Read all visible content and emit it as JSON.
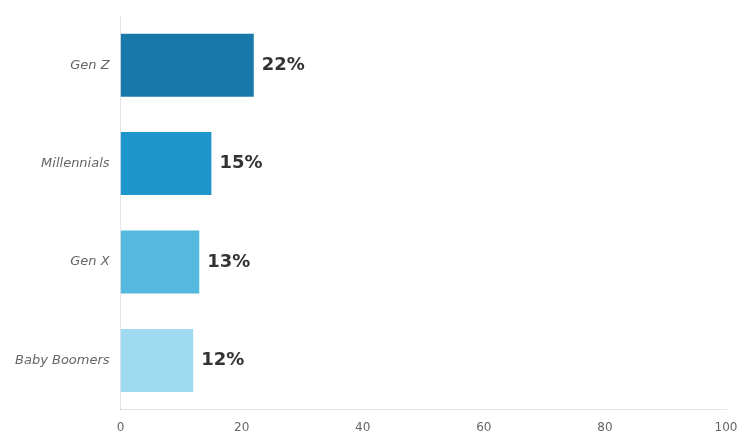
{
  "chart_data": {
    "type": "bar",
    "orientation": "horizontal",
    "categories": [
      "Gen Z",
      "Millennials",
      "Gen X",
      "Baby Boomers"
    ],
    "values": [
      22,
      15,
      13,
      12
    ],
    "value_labels": [
      "22%",
      "15%",
      "13%",
      "12%"
    ],
    "data_labels": true,
    "colors": [
      "#1878aa",
      "#1e96cc",
      "#55b8de",
      "#a0daf0"
    ],
    "xlim": [
      0,
      100
    ],
    "xticks": [
      0,
      20,
      40,
      60,
      80,
      100
    ],
    "grid": false
  }
}
